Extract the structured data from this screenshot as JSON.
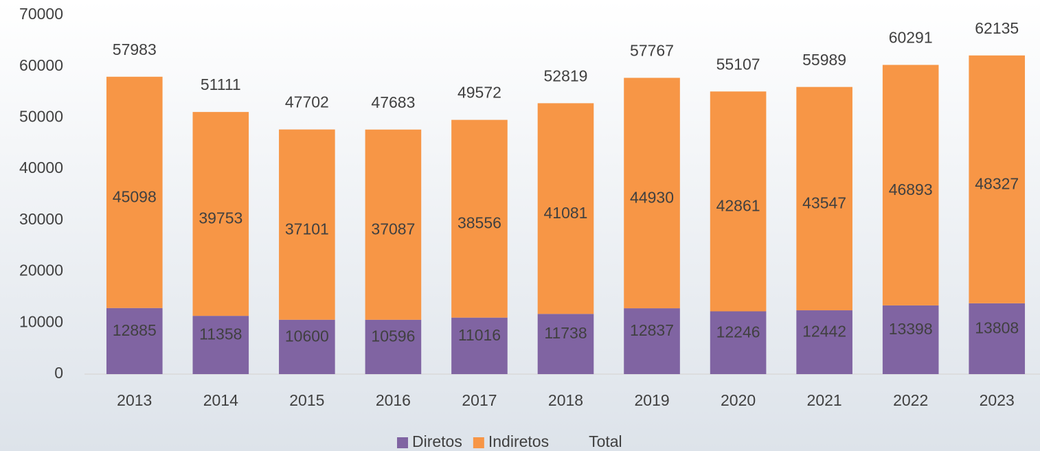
{
  "chart_data": {
    "type": "bar",
    "stacked": true,
    "categories": [
      "2013",
      "2014",
      "2015",
      "2016",
      "2017",
      "2018",
      "2019",
      "2020",
      "2021",
      "2022",
      "2023"
    ],
    "series": [
      {
        "name": "Diretos",
        "color": "#8064a2",
        "values": [
          12885,
          11358,
          10600,
          10596,
          11016,
          11738,
          12837,
          12246,
          12442,
          13398,
          13808
        ]
      },
      {
        "name": "Indiretos",
        "color": "#f79646",
        "values": [
          45098,
          39753,
          37101,
          37087,
          38556,
          41081,
          44930,
          42861,
          43547,
          46893,
          48327
        ]
      },
      {
        "name": "Total",
        "values": [
          57983,
          51111,
          47702,
          47683,
          49572,
          52819,
          57767,
          55107,
          55989,
          60291,
          62135
        ]
      }
    ],
    "ylim": [
      0,
      70000
    ],
    "yticks": [
      0,
      10000,
      20000,
      30000,
      40000,
      50000,
      60000,
      70000
    ],
    "grid": false,
    "legend": "bottom"
  }
}
